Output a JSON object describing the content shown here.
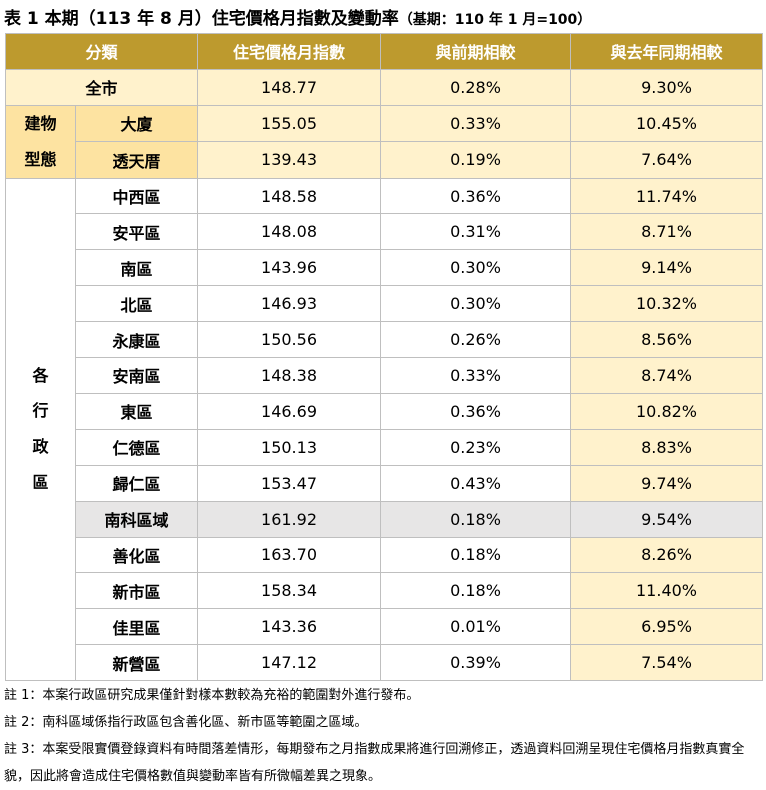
{
  "title": "表 1 本期（113 年 8 月）住宅價格月指數及變動率",
  "subtitle": "（基期：110 年 1 月=100）",
  "table": {
    "header": [
      "分類",
      "住宅價格月指數",
      "與前期相較",
      "與去年同期相較"
    ],
    "sections": [
      {
        "rows": [
          {
            "name": "全市",
            "index": "148.77",
            "qoq": "0.28%",
            "yoy": "9.30%"
          }
        ]
      },
      {
        "label": [
          "建物",
          "型態"
        ],
        "rows": [
          {
            "name": "大廈",
            "index": "155.05",
            "qoq": "0.33%",
            "yoy": "10.45%"
          },
          {
            "name": "透天厝",
            "index": "139.43",
            "qoq": "0.19%",
            "yoy": "7.64%"
          }
        ]
      },
      {
        "label": [
          "各",
          "行",
          "政",
          "區"
        ],
        "rows": [
          {
            "name": "中西區",
            "index": "148.58",
            "qoq": "0.36%",
            "yoy": "11.74%"
          },
          {
            "name": "安平區",
            "index": "148.08",
            "qoq": "0.31%",
            "yoy": "8.71%"
          },
          {
            "name": "南區",
            "index": "143.96",
            "qoq": "0.30%",
            "yoy": "9.14%"
          },
          {
            "name": "北區",
            "index": "146.93",
            "qoq": "0.30%",
            "yoy": "10.32%"
          },
          {
            "name": "永康區",
            "index": "150.56",
            "qoq": "0.26%",
            "yoy": "8.56%"
          },
          {
            "name": "安南區",
            "index": "148.38",
            "qoq": "0.33%",
            "yoy": "8.74%"
          },
          {
            "name": "東區",
            "index": "146.69",
            "qoq": "0.36%",
            "yoy": "10.82%"
          },
          {
            "name": "仁德區",
            "index": "150.13",
            "qoq": "0.23%",
            "yoy": "8.83%"
          },
          {
            "name": "歸仁區",
            "index": "153.47",
            "qoq": "0.43%",
            "yoy": "9.74%"
          },
          {
            "name": "南科區域",
            "index": "161.92",
            "qoq": "0.18%",
            "yoy": "9.54%"
          },
          {
            "name": "善化區",
            "index": "163.70",
            "qoq": "0.18%",
            "yoy": "8.26%"
          },
          {
            "name": "新市區",
            "index": "158.34",
            "qoq": "0.18%",
            "yoy": "11.40%"
          },
          {
            "name": "佳里區",
            "index": "143.36",
            "qoq": "0.01%",
            "yoy": "6.95%"
          },
          {
            "name": "新營區",
            "index": "147.12",
            "qoq": "0.39%",
            "yoy": "7.54%"
          }
        ]
      }
    ]
  },
  "notes": [
    "註 1：本案行政區研究成果僅針對樣本數較為充裕的範圍對外進行發布。",
    "註 2：南科區域係指行政區包含善化區、新市區等範圍之區域。",
    "註 3：本案受限實價登錄資料有時間落差情形，每期發布之月指數成果將進行回溯修正，透過資料回溯呈現住宅價格月指數真實全貌，因此將會造成住宅價格數值與變動率皆有所微幅差異之現象。"
  ]
}
